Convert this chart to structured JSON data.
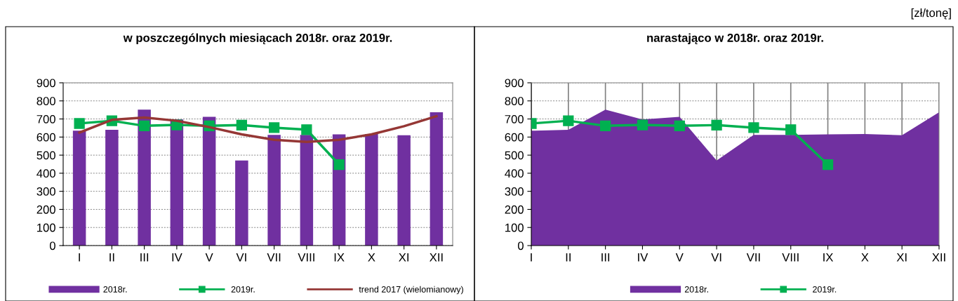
{
  "chart_data": [
    {
      "type": "bar",
      "title": "w poszczególnych miesiącach 2018r. oraz 2019r.",
      "categories": [
        "I",
        "II",
        "III",
        "IV",
        "V",
        "VI",
        "VII",
        "VIII",
        "IX",
        "X",
        "XI",
        "XII"
      ],
      "series": [
        {
          "name": "2018r.",
          "type": "bar",
          "color": "#7030a0",
          "values": [
            635,
            640,
            752,
            697,
            712,
            470,
            612,
            612,
            615,
            617,
            610,
            737
          ]
        },
        {
          "name": "2019r.",
          "type": "line",
          "color": "#00b050",
          "marker": "square",
          "values": [
            675,
            690,
            662,
            667,
            662,
            666,
            652,
            641,
            448,
            null,
            null,
            null
          ]
        },
        {
          "name": "trend 2017 (wielomianowy)",
          "type": "line",
          "color": "#953735",
          "marker": "none",
          "values": [
            625,
            695,
            708,
            690,
            655,
            615,
            585,
            573,
            585,
            615,
            660,
            715
          ]
        }
      ],
      "ylim": [
        0,
        900
      ],
      "yticks": [
        0,
        100,
        200,
        300,
        400,
        500,
        600,
        700,
        800,
        900
      ],
      "grid": "y",
      "legend": "bottom"
    },
    {
      "type": "area",
      "title": "narastająco w 2018r. oraz 2019r.",
      "categories": [
        "I",
        "II",
        "III",
        "IV",
        "V",
        "VI",
        "VII",
        "VIII",
        "IX",
        "X",
        "XI",
        "XII"
      ],
      "series": [
        {
          "name": "2018r.",
          "type": "area",
          "color": "#7030a0",
          "values": [
            635,
            640,
            752,
            697,
            712,
            470,
            612,
            612,
            615,
            617,
            610,
            737
          ]
        },
        {
          "name": "2019r.",
          "type": "line",
          "color": "#00b050",
          "marker": "square",
          "values": [
            675,
            690,
            662,
            667,
            662,
            666,
            652,
            641,
            448,
            null,
            null,
            null
          ]
        }
      ],
      "ylim": [
        0,
        900
      ],
      "yticks": [
        0,
        100,
        200,
        300,
        400,
        500,
        600,
        700,
        800,
        900
      ],
      "grid": true,
      "legend": "bottom",
      "annotations": [
        "[zł/tonę]"
      ]
    }
  ]
}
